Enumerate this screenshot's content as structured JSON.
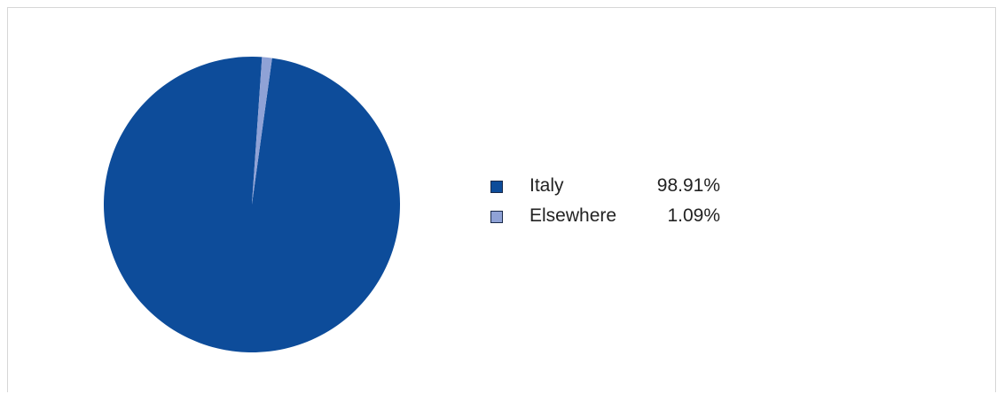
{
  "colors": {
    "italy": "#0d4c9a",
    "elsewhere": "#8fa2d6",
    "border": "#d6d6d6"
  },
  "legend": {
    "items": [
      {
        "label": "Italy",
        "value": "98.91%"
      },
      {
        "label": "Elsewhere",
        "value": "1.09%"
      }
    ]
  },
  "chart_data": {
    "type": "pie",
    "categories": [
      "Italy",
      "Elsewhere"
    ],
    "values": [
      98.91,
      1.09
    ],
    "colors": [
      "#0d4c9a",
      "#8fa2d6"
    ],
    "legend_position": "right"
  }
}
